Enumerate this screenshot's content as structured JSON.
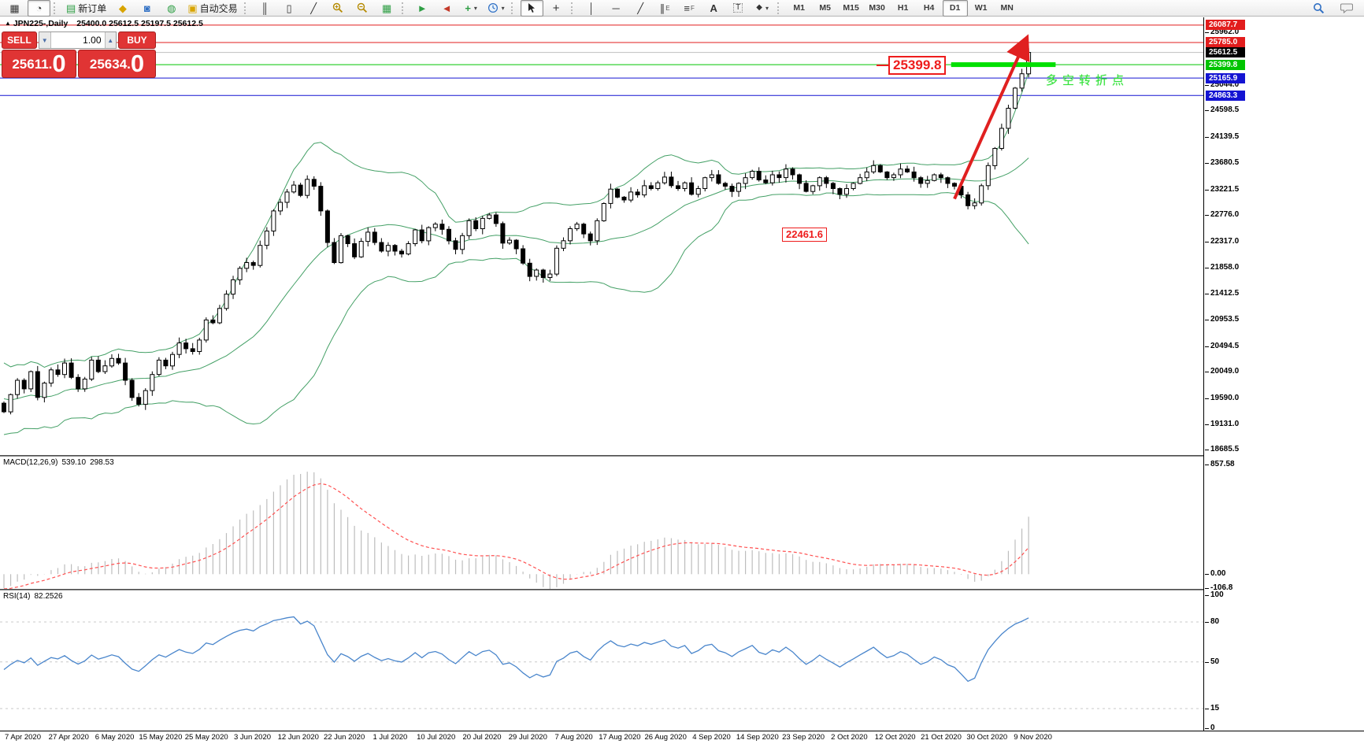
{
  "toolbar": {
    "new_order_label": "新订单",
    "autotrading_label": "自动交易",
    "timeframes": [
      "M1",
      "M5",
      "M15",
      "M30",
      "H1",
      "H4",
      "D1",
      "W1",
      "MN"
    ],
    "active_timeframe": "D1",
    "icons": {
      "new_chart": "▦",
      "profiles": "◔",
      "new_order_doc": "▤",
      "metaeditor": "◆",
      "market": "◙",
      "signals": "◍",
      "autotrading_cart": "▣",
      "bar_chart": "║",
      "candle_chart": "▯",
      "line_chart": "╱",
      "tile_windows": "▦",
      "auto_scroll": "►",
      "chart_shift": "◄",
      "indicators_plus": "+",
      "dropdown_arrow": "▾",
      "crosshair": "+",
      "vertical_line": "│",
      "horizontal_line": "─",
      "trendline": "╱",
      "channel": "∥",
      "channel_sub": "E",
      "fibonacci": "≡",
      "fibonacci_sub": "F",
      "text_tool": "A",
      "label_tool": "T",
      "shapes_tool": "◆"
    }
  },
  "window": {
    "title_marker": "▲",
    "symbol_title": "JPN225-,Daily",
    "ohlc": "25400.0 25612.5 25197.5 25612.5"
  },
  "trade_panel": {
    "sell_label": "SELL",
    "buy_label": "BUY",
    "volume": "1.00",
    "down_glyph": "▼",
    "up_glyph": "▲",
    "sell_price_main": "25611.",
    "sell_price_big": "0",
    "buy_price_main": "25634.",
    "buy_price_big": "0"
  },
  "annotations": {
    "level_callout": "25399.8",
    "low_callout": "22461.6",
    "trend_note": "多空转折点"
  },
  "main_axis": {
    "ticks": [
      25962.0,
      25044.0,
      24598.5,
      24139.5,
      23680.5,
      23221.5,
      22776.0,
      22317.0,
      21858.0,
      21412.5,
      20953.5,
      20494.5,
      20049.0,
      19590.0,
      19131.0,
      18685.5
    ],
    "badges": [
      {
        "value": 26087.7,
        "label": "26087.7",
        "bg": "#e21d1d"
      },
      {
        "value": 25785.0,
        "label": "25785.0",
        "bg": "#e21d1d"
      },
      {
        "value": 25612.5,
        "label": "25612.5",
        "bg": "#000000"
      },
      {
        "value": 25399.8,
        "label": "25399.8",
        "bg": "#00c400"
      },
      {
        "value": 25165.9,
        "label": "25165.9",
        "bg": "#1414d2"
      },
      {
        "value": 24863.3,
        "label": "24863.3",
        "bg": "#1414d2"
      }
    ]
  },
  "levels": [
    {
      "value": 26087.7,
      "color": "#e21d1d"
    },
    {
      "value": 25785.0,
      "color": "#e21d1d"
    },
    {
      "value": 25612.5,
      "color": "#c0c0c0"
    },
    {
      "value": 25399.8,
      "color": "#00c400"
    },
    {
      "value": 25165.9,
      "color": "#1414d2"
    },
    {
      "value": 24863.3,
      "color": "#1414d2"
    }
  ],
  "macd_panel": {
    "name": "MACD(12,26,9)",
    "value1": "539.10",
    "value2": "298.53",
    "ticks": [
      {
        "value": 857.58,
        "label": "857.58"
      },
      {
        "value": 0,
        "label": "0.00"
      },
      {
        "value": -106.8,
        "label": "-106.8"
      }
    ]
  },
  "rsi_panel": {
    "name": "RSI(14)",
    "value": "82.2526",
    "ticks": [
      {
        "value": 100,
        "label": "100"
      },
      {
        "value": 80,
        "label": "80"
      },
      {
        "value": 50,
        "label": "50"
      },
      {
        "value": 15,
        "label": "15"
      },
      {
        "value": 0,
        "label": "0"
      }
    ],
    "gridlines": [
      80,
      50,
      15
    ]
  },
  "time_axis": [
    "7 Apr 2020",
    "27 Apr 2020",
    "6 May 2020",
    "15 May 2020",
    "25 May 2020",
    "3 Jun 2020",
    "12 Jun 2020",
    "22 Jun 2020",
    "1 Jul 2020",
    "10 Jul 2020",
    "20 Jul 2020",
    "29 Jul 2020",
    "7 Aug 2020",
    "17 Aug 2020",
    "26 Aug 2020",
    "4 Sep 2020",
    "14 Sep 2020",
    "23 Sep 2020",
    "2 Oct 2020",
    "12 Oct 2020",
    "21 Oct 2020",
    "30 Oct 2020",
    "9 Nov 2020"
  ],
  "colors": {
    "band": "#44a066",
    "candle_outline": "#000000",
    "macd_hist": "#bdbdbd",
    "macd_signal": "#ff5151",
    "rsi_line": "#4a86cc",
    "arrow": "#e02020",
    "support_segment": "#00e000",
    "trade_red": "#e03434"
  },
  "chart_data": {
    "type": "candlestick",
    "symbol": "JPN225",
    "timeframe": "Daily",
    "ylim": {
      "top": 26224,
      "bottom": 18596
    },
    "macd_ylim": [
      -115,
      920
    ],
    "rsi_ylim": [
      0,
      100
    ],
    "indicators": {
      "bollinger": {
        "period": 20,
        "deviation": 2
      },
      "macd": {
        "fast": 12,
        "slow": 26,
        "signal": 9
      },
      "rsi": {
        "period": 14
      }
    },
    "warmup_closes": [
      20300,
      20000,
      19600,
      19000,
      18900,
      19300,
      19800,
      20100,
      19400,
      19100,
      19500,
      19900,
      20200,
      19800,
      19300,
      19000,
      19400,
      19700,
      20000,
      19700,
      19300,
      19500,
      19800,
      19600,
      19400,
      19500
    ],
    "closes": [
      19350,
      19650,
      19900,
      19750,
      20050,
      19600,
      19850,
      20080,
      20000,
      20200,
      19950,
      19750,
      19920,
      20250,
      20050,
      20150,
      20280,
      20200,
      19900,
      19600,
      19480,
      19720,
      20000,
      20250,
      20150,
      20350,
      20550,
      20450,
      20400,
      20600,
      20950,
      20900,
      21150,
      21400,
      21650,
      21850,
      21950,
      21900,
      22250,
      22500,
      22850,
      23000,
      23180,
      23300,
      23120,
      23400,
      23280,
      22850,
      22300,
      21950,
      22420,
      22280,
      22050,
      22320,
      22480,
      22300,
      22150,
      22250,
      22150,
      22100,
      22280,
      22520,
      22330,
      22560,
      22620,
      22530,
      22330,
      22180,
      22420,
      22680,
      22540,
      22720,
      22780,
      22630,
      22290,
      22340,
      22190,
      21940,
      21710,
      21820,
      21690,
      21750,
      22200,
      22330,
      22540,
      22620,
      22450,
      22330,
      22680,
      22980,
      23230,
      23090,
      23040,
      23180,
      23130,
      23290,
      23240,
      23340,
      23440,
      23290,
      23240,
      23340,
      23140,
      23240,
      23430,
      23480,
      23330,
      23280,
      23190,
      23330,
      23430,
      23540,
      23390,
      23340,
      23480,
      23430,
      23580,
      23480,
      23330,
      23190,
      23290,
      23430,
      23330,
      23240,
      23140,
      23240,
      23330,
      23430,
      23530,
      23640,
      23530,
      23430,
      23480,
      23580,
      23530,
      23430,
      23330,
      23380,
      23480,
      23430,
      23330,
      23280,
      23130,
      22940,
      22990,
      23290,
      23640,
      23940,
      24290,
      24640,
      24990,
      25240,
      25612.5
    ],
    "support_level": {
      "price": 25399.8,
      "bar_from": 140.5,
      "bar_to": 156
    },
    "low_mark_price": 22461.6,
    "arrow": {
      "bar_from": 141,
      "price_from": 23060,
      "bar_to": 151.6,
      "price_to": 25830
    }
  }
}
